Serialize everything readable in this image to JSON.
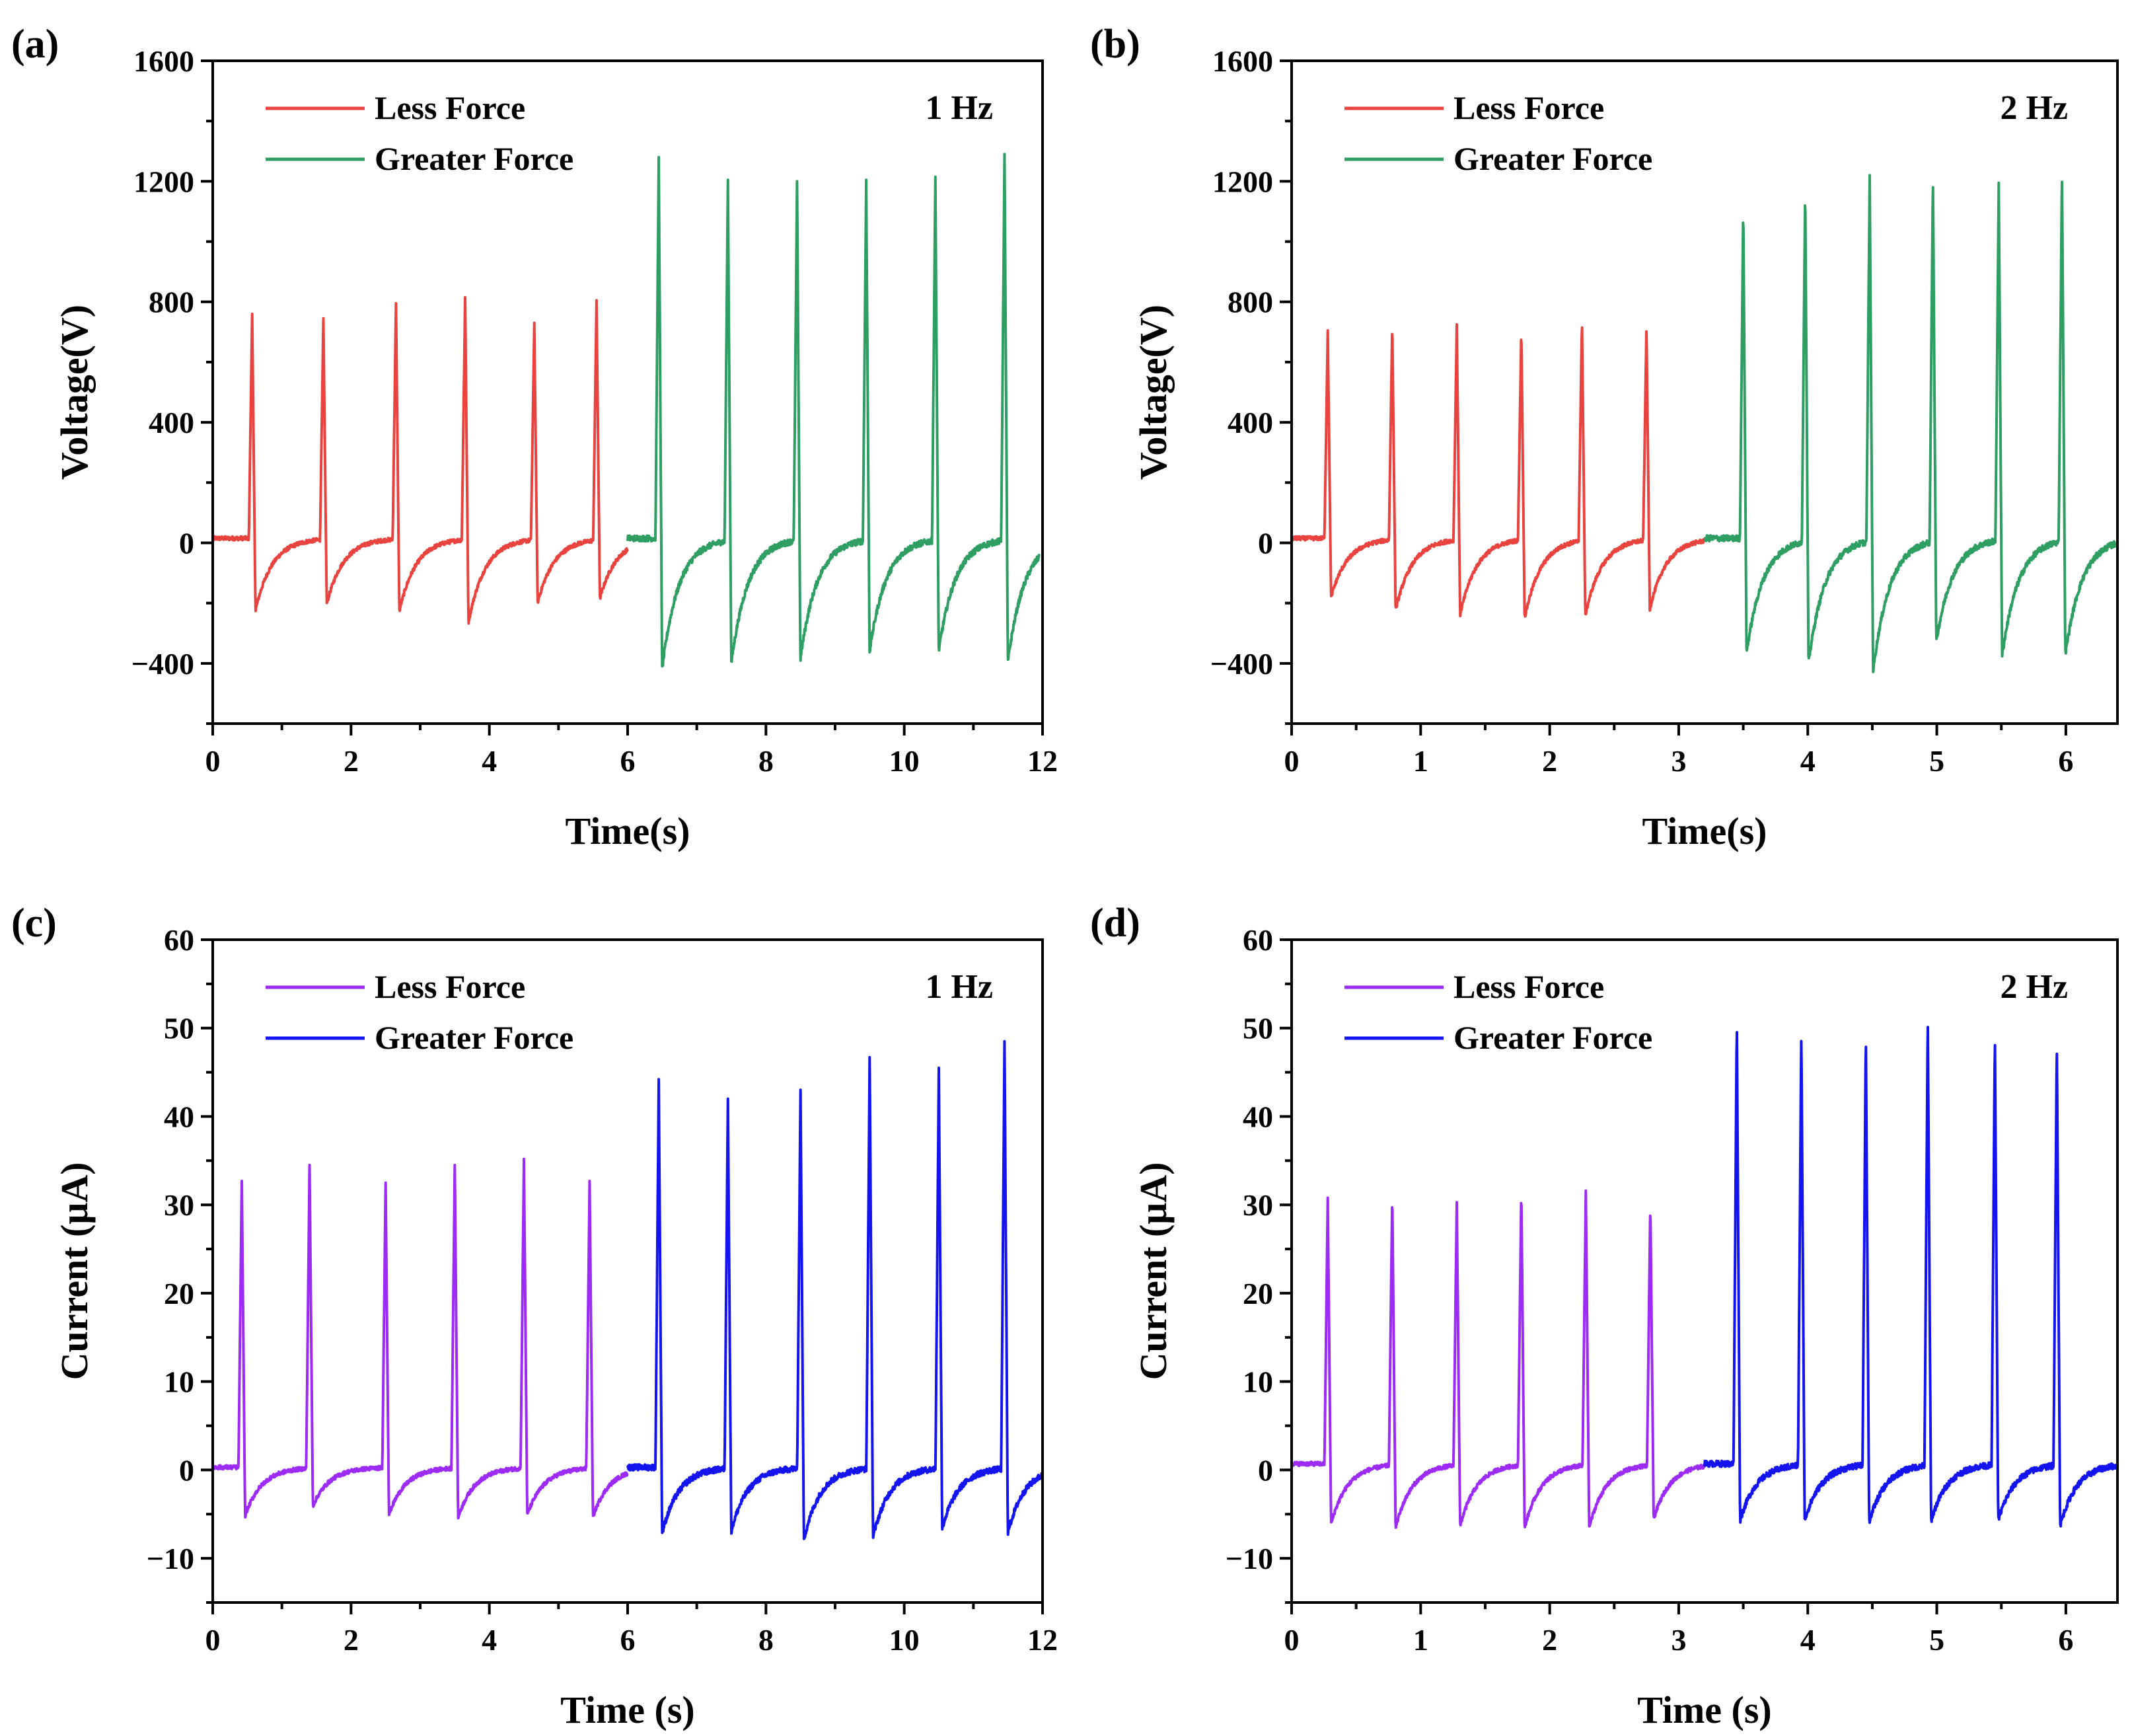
{
  "chart_data": [
    {
      "panel": "(a)",
      "type": "line",
      "frequency": "1 Hz",
      "xlabel": "Time(s)",
      "ylabel": "Voltage(V)",
      "xlim": [
        0,
        12
      ],
      "ylim": [
        -600,
        1600
      ],
      "xticks": [
        0,
        2,
        4,
        6,
        8,
        10,
        12
      ],
      "xtick_labels": [
        "0",
        "2",
        "4",
        "6",
        "8",
        "10",
        "12"
      ],
      "yticks": [
        -400,
        0,
        400,
        800,
        1200,
        1600
      ],
      "ytick_labels": [
        "−400",
        "0",
        "400",
        "800",
        "1200",
        "1600"
      ],
      "legend": [
        "Less Force",
        "Greater Force"
      ],
      "baseline": 15,
      "series": [
        {
          "name": "Less Force",
          "color": "#e8433f",
          "x_start": 0,
          "x_end": 6,
          "peak_times": [
            0.57,
            1.6,
            2.65,
            3.65,
            4.65,
            5.55
          ],
          "peaks": [
            760,
            745,
            795,
            815,
            730,
            805
          ],
          "troughs": [
            -225,
            -200,
            -225,
            -260,
            -195,
            -180
          ]
        },
        {
          "name": "Greater Force",
          "color": "#2e9e63",
          "x_start": 6,
          "x_end": 11.95,
          "peak_times": [
            6.45,
            7.45,
            8.45,
            9.45,
            10.45,
            11.45
          ],
          "peaks": [
            1280,
            1205,
            1200,
            1205,
            1215,
            1290
          ],
          "troughs": [
            -420,
            -395,
            -380,
            -355,
            -355,
            -390
          ]
        }
      ]
    },
    {
      "panel": "(b)",
      "type": "line",
      "frequency": "2 Hz",
      "xlabel": "Time(s)",
      "ylabel": "Voltage(V)",
      "xlim": [
        0,
        6.4
      ],
      "ylim": [
        -600,
        1600
      ],
      "xticks": [
        0,
        1,
        2,
        3,
        4,
        5,
        6
      ],
      "xtick_labels": [
        "0",
        "1",
        "2",
        "3",
        "4",
        "5",
        "6"
      ],
      "yticks": [
        -400,
        0,
        400,
        800,
        1200,
        1600
      ],
      "ytick_labels": [
        "−400",
        "0",
        "400",
        "800",
        "1200",
        "1600"
      ],
      "legend": [
        "Less Force",
        "Greater Force"
      ],
      "baseline": 15,
      "series": [
        {
          "name": "Less Force",
          "color": "#e8433f",
          "x_start": 0,
          "x_end": 3.2,
          "peak_times": [
            0.28,
            0.78,
            1.28,
            1.78,
            2.25,
            2.75
          ],
          "peaks": [
            705,
            730,
            725,
            710,
            740,
            720
          ],
          "troughs": [
            -180,
            -220,
            -235,
            -245,
            -235,
            -215
          ]
        },
        {
          "name": "Greater Force",
          "color": "#2e9e63",
          "x_start": 3.2,
          "x_end": 6.4,
          "peak_times": [
            3.5,
            3.98,
            4.48,
            4.97,
            5.48,
            5.97
          ],
          "peaks": [
            1120,
            1180,
            1220,
            1220,
            1195,
            1240
          ],
          "troughs": [
            -365,
            -390,
            -420,
            -320,
            -370,
            -365
          ]
        }
      ]
    },
    {
      "panel": "(c)",
      "type": "line",
      "frequency": "1 Hz",
      "xlabel": "Time (s)",
      "ylabel": "Current (μA)",
      "xlim": [
        0,
        12
      ],
      "ylim": [
        -15,
        60
      ],
      "xticks": [
        0,
        2,
        4,
        6,
        8,
        10,
        12
      ],
      "xtick_labels": [
        "0",
        "2",
        "4",
        "6",
        "8",
        "10",
        "12"
      ],
      "yticks": [
        -10,
        0,
        10,
        20,
        30,
        40,
        50,
        60
      ],
      "ytick_labels": [
        "−10",
        "0",
        "10",
        "20",
        "30",
        "40",
        "50",
        "60"
      ],
      "legend": [
        "Less Force",
        "Greater Force"
      ],
      "baseline": 0.3,
      "series": [
        {
          "name": "Less Force",
          "color": "#9b2bf5",
          "x_start": 0,
          "x_end": 6,
          "peak_times": [
            0.42,
            1.4,
            2.5,
            3.5,
            4.5,
            5.45
          ],
          "peaks": [
            32.7,
            34.5,
            32.5,
            34.5,
            35.2,
            32.7
          ],
          "troughs": [
            -5.2,
            -4,
            -5,
            -5.3,
            -5,
            -5.2
          ]
        },
        {
          "name": "Greater Force",
          "color": "#1414f0",
          "x_start": 6,
          "x_end": 12,
          "peak_times": [
            6.45,
            7.45,
            8.5,
            9.5,
            10.5,
            11.45
          ],
          "peaks": [
            44.2,
            42,
            43,
            46.7,
            45.5,
            48.5
          ],
          "troughs": [
            -7.2,
            -6.8,
            -7.8,
            -7.5,
            -6.5,
            -7
          ]
        }
      ]
    },
    {
      "panel": "(d)",
      "type": "line",
      "frequency": "2 Hz",
      "xlabel": "Time (s)",
      "ylabel": "Current (μA)",
      "xlim": [
        0,
        6.4
      ],
      "ylim": [
        -15,
        60
      ],
      "xticks": [
        0,
        1,
        2,
        3,
        4,
        5,
        6
      ],
      "xtick_labels": [
        "0",
        "1",
        "2",
        "3",
        "4",
        "5",
        "6"
      ],
      "yticks": [
        -10,
        0,
        10,
        20,
        30,
        40,
        50,
        60
      ],
      "ytick_labels": [
        "−10",
        "0",
        "10",
        "20",
        "30",
        "40",
        "50",
        "60"
      ],
      "legend": [
        "Less Force",
        "Greater Force"
      ],
      "baseline": 0.7,
      "series": [
        {
          "name": "Less Force",
          "color": "#9b2bf5",
          "x_start": 0,
          "x_end": 3.2,
          "peak_times": [
            0.28,
            0.78,
            1.28,
            1.78,
            2.28,
            2.78
          ],
          "peaks": [
            30.8,
            31.3,
            30.3,
            31.8,
            31.6,
            30.3
          ],
          "troughs": [
            -6.1,
            -6.4,
            -6.2,
            -6.4,
            -6.4,
            -5.4
          ]
        },
        {
          "name": "Greater Force",
          "color": "#1414f0",
          "x_start": 3.2,
          "x_end": 6.4,
          "peak_times": [
            3.45,
            3.95,
            4.45,
            4.93,
            5.45,
            5.93
          ],
          "peaks": [
            51,
            49.8,
            49.3,
            51.6,
            49.5,
            48.5
          ],
          "troughs": [
            -5.7,
            -5.6,
            -5.8,
            -5.6,
            -5.6,
            -6.2
          ]
        }
      ]
    }
  ]
}
